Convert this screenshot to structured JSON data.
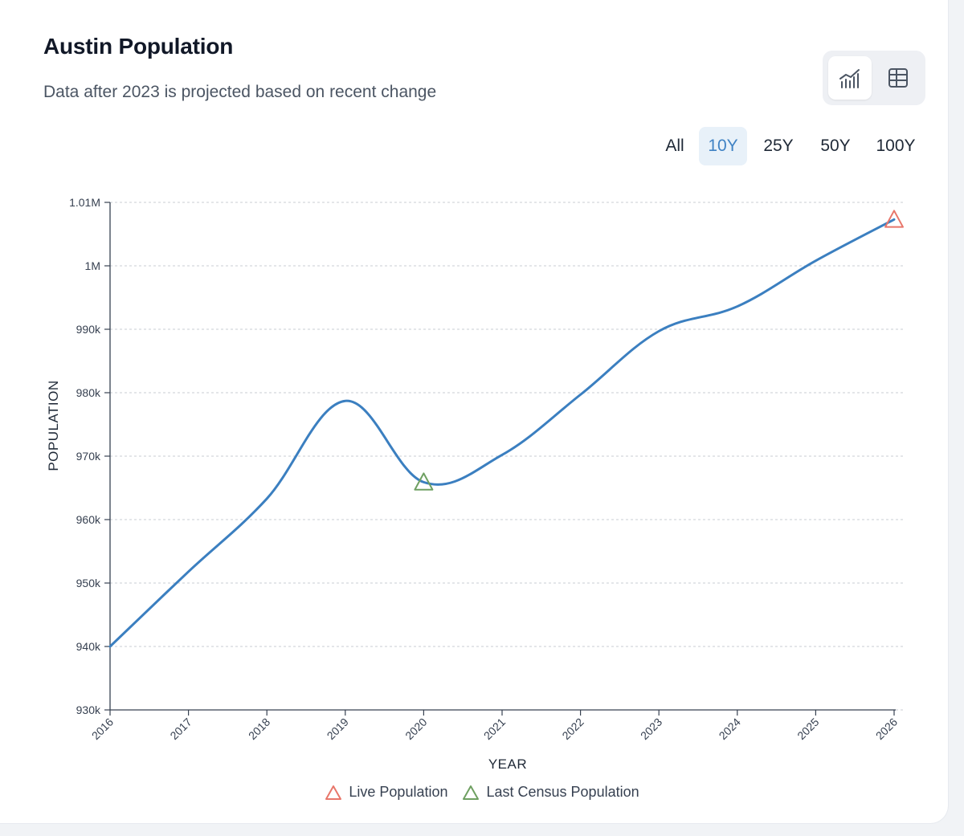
{
  "header": {
    "title": "Austin Population",
    "subtitle": "Data after 2023 is projected based on recent change"
  },
  "view_toggle": {
    "chart_icon": "line-chart-icon",
    "table_icon": "table-icon",
    "active": "chart"
  },
  "range_tabs": [
    {
      "label": "All",
      "active": false
    },
    {
      "label": "10Y",
      "active": true
    },
    {
      "label": "25Y",
      "active": false
    },
    {
      "label": "50Y",
      "active": false
    },
    {
      "label": "100Y",
      "active": false
    }
  ],
  "colors": {
    "line": "#3b7fc0",
    "live_marker": "#e8766a",
    "census_marker": "#6fa062",
    "active_tab_bg": "#e8f1f9",
    "active_tab_text": "#3f82c4"
  },
  "legend": {
    "live": "Live Population",
    "census": "Last Census Population"
  },
  "chart_data": {
    "type": "line",
    "title": "",
    "xlabel": "YEAR",
    "ylabel": "POPULATION",
    "x": [
      2016,
      2017,
      2018,
      2019,
      2020,
      2021,
      2022,
      2023,
      2024,
      2025,
      2026
    ],
    "x_tick_labels": [
      "2016",
      "2017",
      "2018",
      "2019",
      "2020",
      "2021",
      "2022",
      "2023",
      "2024",
      "2025",
      "2026"
    ],
    "series": [
      {
        "values": [
          940000,
          951800,
          963300,
          978700,
          965900,
          970200,
          979700,
          989700,
          993600,
          1000800,
          1007300
        ]
      }
    ],
    "ylim": [
      930000,
      1010000
    ],
    "y_ticks": [
      930000,
      940000,
      950000,
      960000,
      970000,
      980000,
      990000,
      1000000,
      1010000
    ],
    "y_tick_labels": [
      "930k",
      "940k",
      "950k",
      "960k",
      "970k",
      "980k",
      "990k",
      "1M",
      "1.01M"
    ],
    "grid": true,
    "markers": [
      {
        "series_label": "Live Population",
        "x": 2026,
        "y": 1007300,
        "shape": "triangle"
      },
      {
        "series_label": "Last Census Population",
        "x": 2020,
        "y": 965900,
        "shape": "triangle"
      }
    ],
    "legend_position": "bottom"
  }
}
